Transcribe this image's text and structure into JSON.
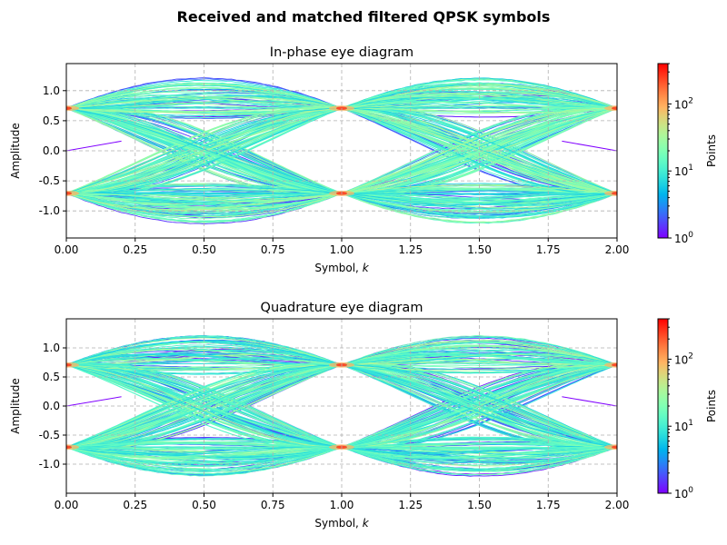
{
  "suptitle": "Received and matched filtered QPSK symbols",
  "colormap": "rainbow",
  "chart_data": [
    {
      "type": "heatmap",
      "title": "In-phase eye diagram",
      "xlabel": "Symbol, k",
      "ylabel": "Amplitude",
      "xlim": [
        0,
        2
      ],
      "ylim": [
        -1.45,
        1.45
      ],
      "xticks": [
        "0.00",
        "0.25",
        "0.50",
        "0.75",
        "1.00",
        "1.25",
        "1.50",
        "1.75",
        "2.00"
      ],
      "yticks": [
        "1.0",
        "0.5",
        "0.0",
        "-0.5",
        "-1.0"
      ],
      "symbol_levels": [
        -0.707,
        0.707
      ],
      "grid": true,
      "colorbar": {
        "label": "Points",
        "scale": "log",
        "range": [
          1,
          400
        ],
        "ticks": [
          "10^0",
          "10^1",
          "10^2"
        ]
      }
    },
    {
      "type": "heatmap",
      "title": "Quadrature eye diagram",
      "xlabel": "Symbol, k",
      "ylabel": "Amplitude",
      "xlim": [
        0,
        2
      ],
      "ylim": [
        -1.5,
        1.5
      ],
      "xticks": [
        "0.00",
        "0.25",
        "0.50",
        "0.75",
        "1.00",
        "1.25",
        "1.50",
        "1.75",
        "2.00"
      ],
      "yticks": [
        "1.0",
        "0.5",
        "0.0",
        "-0.5",
        "-1.0"
      ],
      "symbol_levels": [
        -0.707,
        0.707
      ],
      "grid": true,
      "colorbar": {
        "label": "Points",
        "scale": "log",
        "range": [
          1,
          400
        ],
        "ticks": [
          "10^0",
          "10^1",
          "10^2"
        ]
      }
    }
  ]
}
